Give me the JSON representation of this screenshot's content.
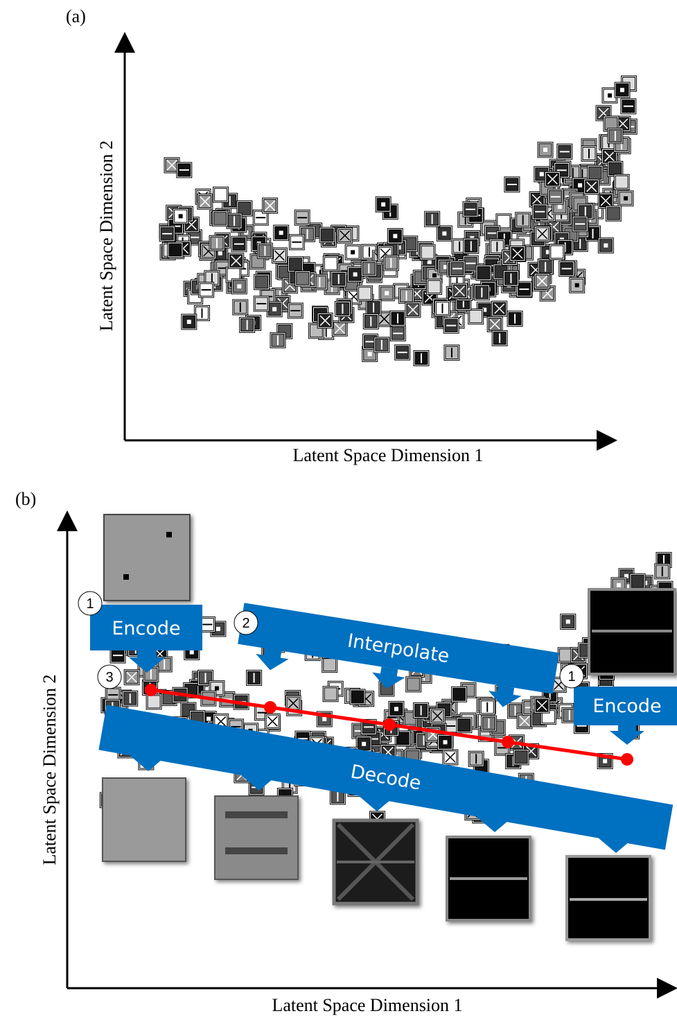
{
  "panel_a": {
    "label": "(a)",
    "x_axis_label": "Latent Space Dimension 1",
    "y_axis_label": "Latent Space Dimension 2"
  },
  "panel_b": {
    "label": "(b)",
    "x_axis_label": "Latent Space Dimension 1",
    "y_axis_label": "Latent Space Dimension 2",
    "steps": [
      {
        "number": "1",
        "label": "Encode"
      },
      {
        "number": "2",
        "label": "Interpolate"
      },
      {
        "number": "3",
        "label": "Decode"
      },
      {
        "number": "1",
        "label": "Encode"
      }
    ]
  }
}
